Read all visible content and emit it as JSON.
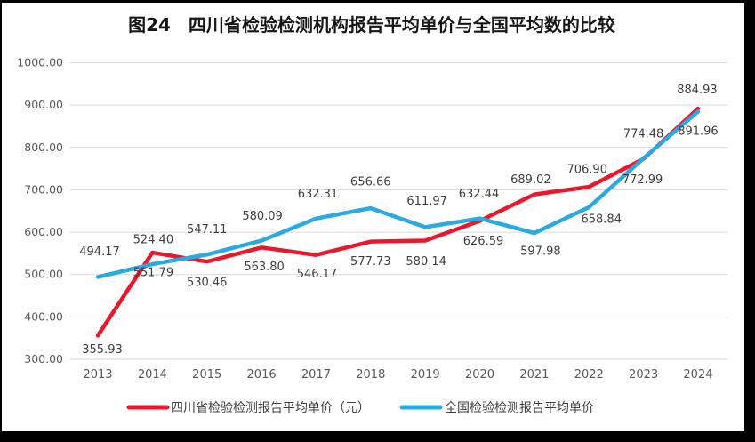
{
  "window": {
    "background_color": "#000000",
    "card_color": "#ffffff"
  },
  "chart_data": {
    "type": "line",
    "title": "图24　四川省检验检测机构报告平均单价与全国平均数的比较",
    "categories": [
      "2013",
      "2014",
      "2015",
      "2016",
      "2017",
      "2018",
      "2019",
      "2020",
      "2021",
      "2022",
      "2023",
      "2024"
    ],
    "series": [
      {
        "name": "四川省检验检测报告平均单价（元）",
        "color": "#e9182c",
        "values": [
          355.93,
          551.79,
          530.46,
          563.8,
          546.17,
          577.73,
          580.14,
          626.59,
          689.02,
          706.9,
          772.99,
          891.96
        ],
        "label_offsets": [
          [
            5,
            15
          ],
          [
            1,
            22
          ],
          [
            0,
            23
          ],
          [
            3,
            21
          ],
          [
            1,
            21
          ],
          [
            0,
            22
          ],
          [
            1,
            23
          ],
          [
            4,
            22
          ],
          [
            -4,
            -17
          ],
          [
            -2,
            -20
          ],
          [
            -1,
            23
          ],
          [
            0,
            25
          ]
        ]
      },
      {
        "name": "全国检验检测报告平均单价",
        "color": "#2ba9e1",
        "values": [
          494.17,
          524.4,
          547.11,
          580.09,
          632.31,
          656.66,
          611.97,
          632.44,
          597.98,
          658.84,
          774.48,
          884.93
        ],
        "label_offsets": [
          [
            2,
            -29
          ],
          [
            1,
            -28
          ],
          [
            0,
            -29
          ],
          [
            1,
            -28
          ],
          [
            2,
            -28
          ],
          [
            0,
            -30
          ],
          [
            2,
            -30
          ],
          [
            -1,
            -28
          ],
          [
            7,
            20
          ],
          [
            14,
            13
          ],
          [
            0,
            -28
          ],
          [
            -1,
            -25
          ]
        ]
      }
    ],
    "ylim": [
      300,
      1000
    ],
    "ytick_step": 100,
    "ytick_labels": [
      "300.00",
      "400.00",
      "500.00",
      "600.00",
      "700.00",
      "800.00",
      "900.00",
      "1000.00"
    ],
    "value_decimals": 2,
    "grid": true,
    "legend_position": "bottom",
    "colors": {
      "gridline": "#d9d9d9",
      "axis_text": "#595959",
      "data_label_text": "#3f3f3f",
      "title_text": "#161616"
    }
  }
}
